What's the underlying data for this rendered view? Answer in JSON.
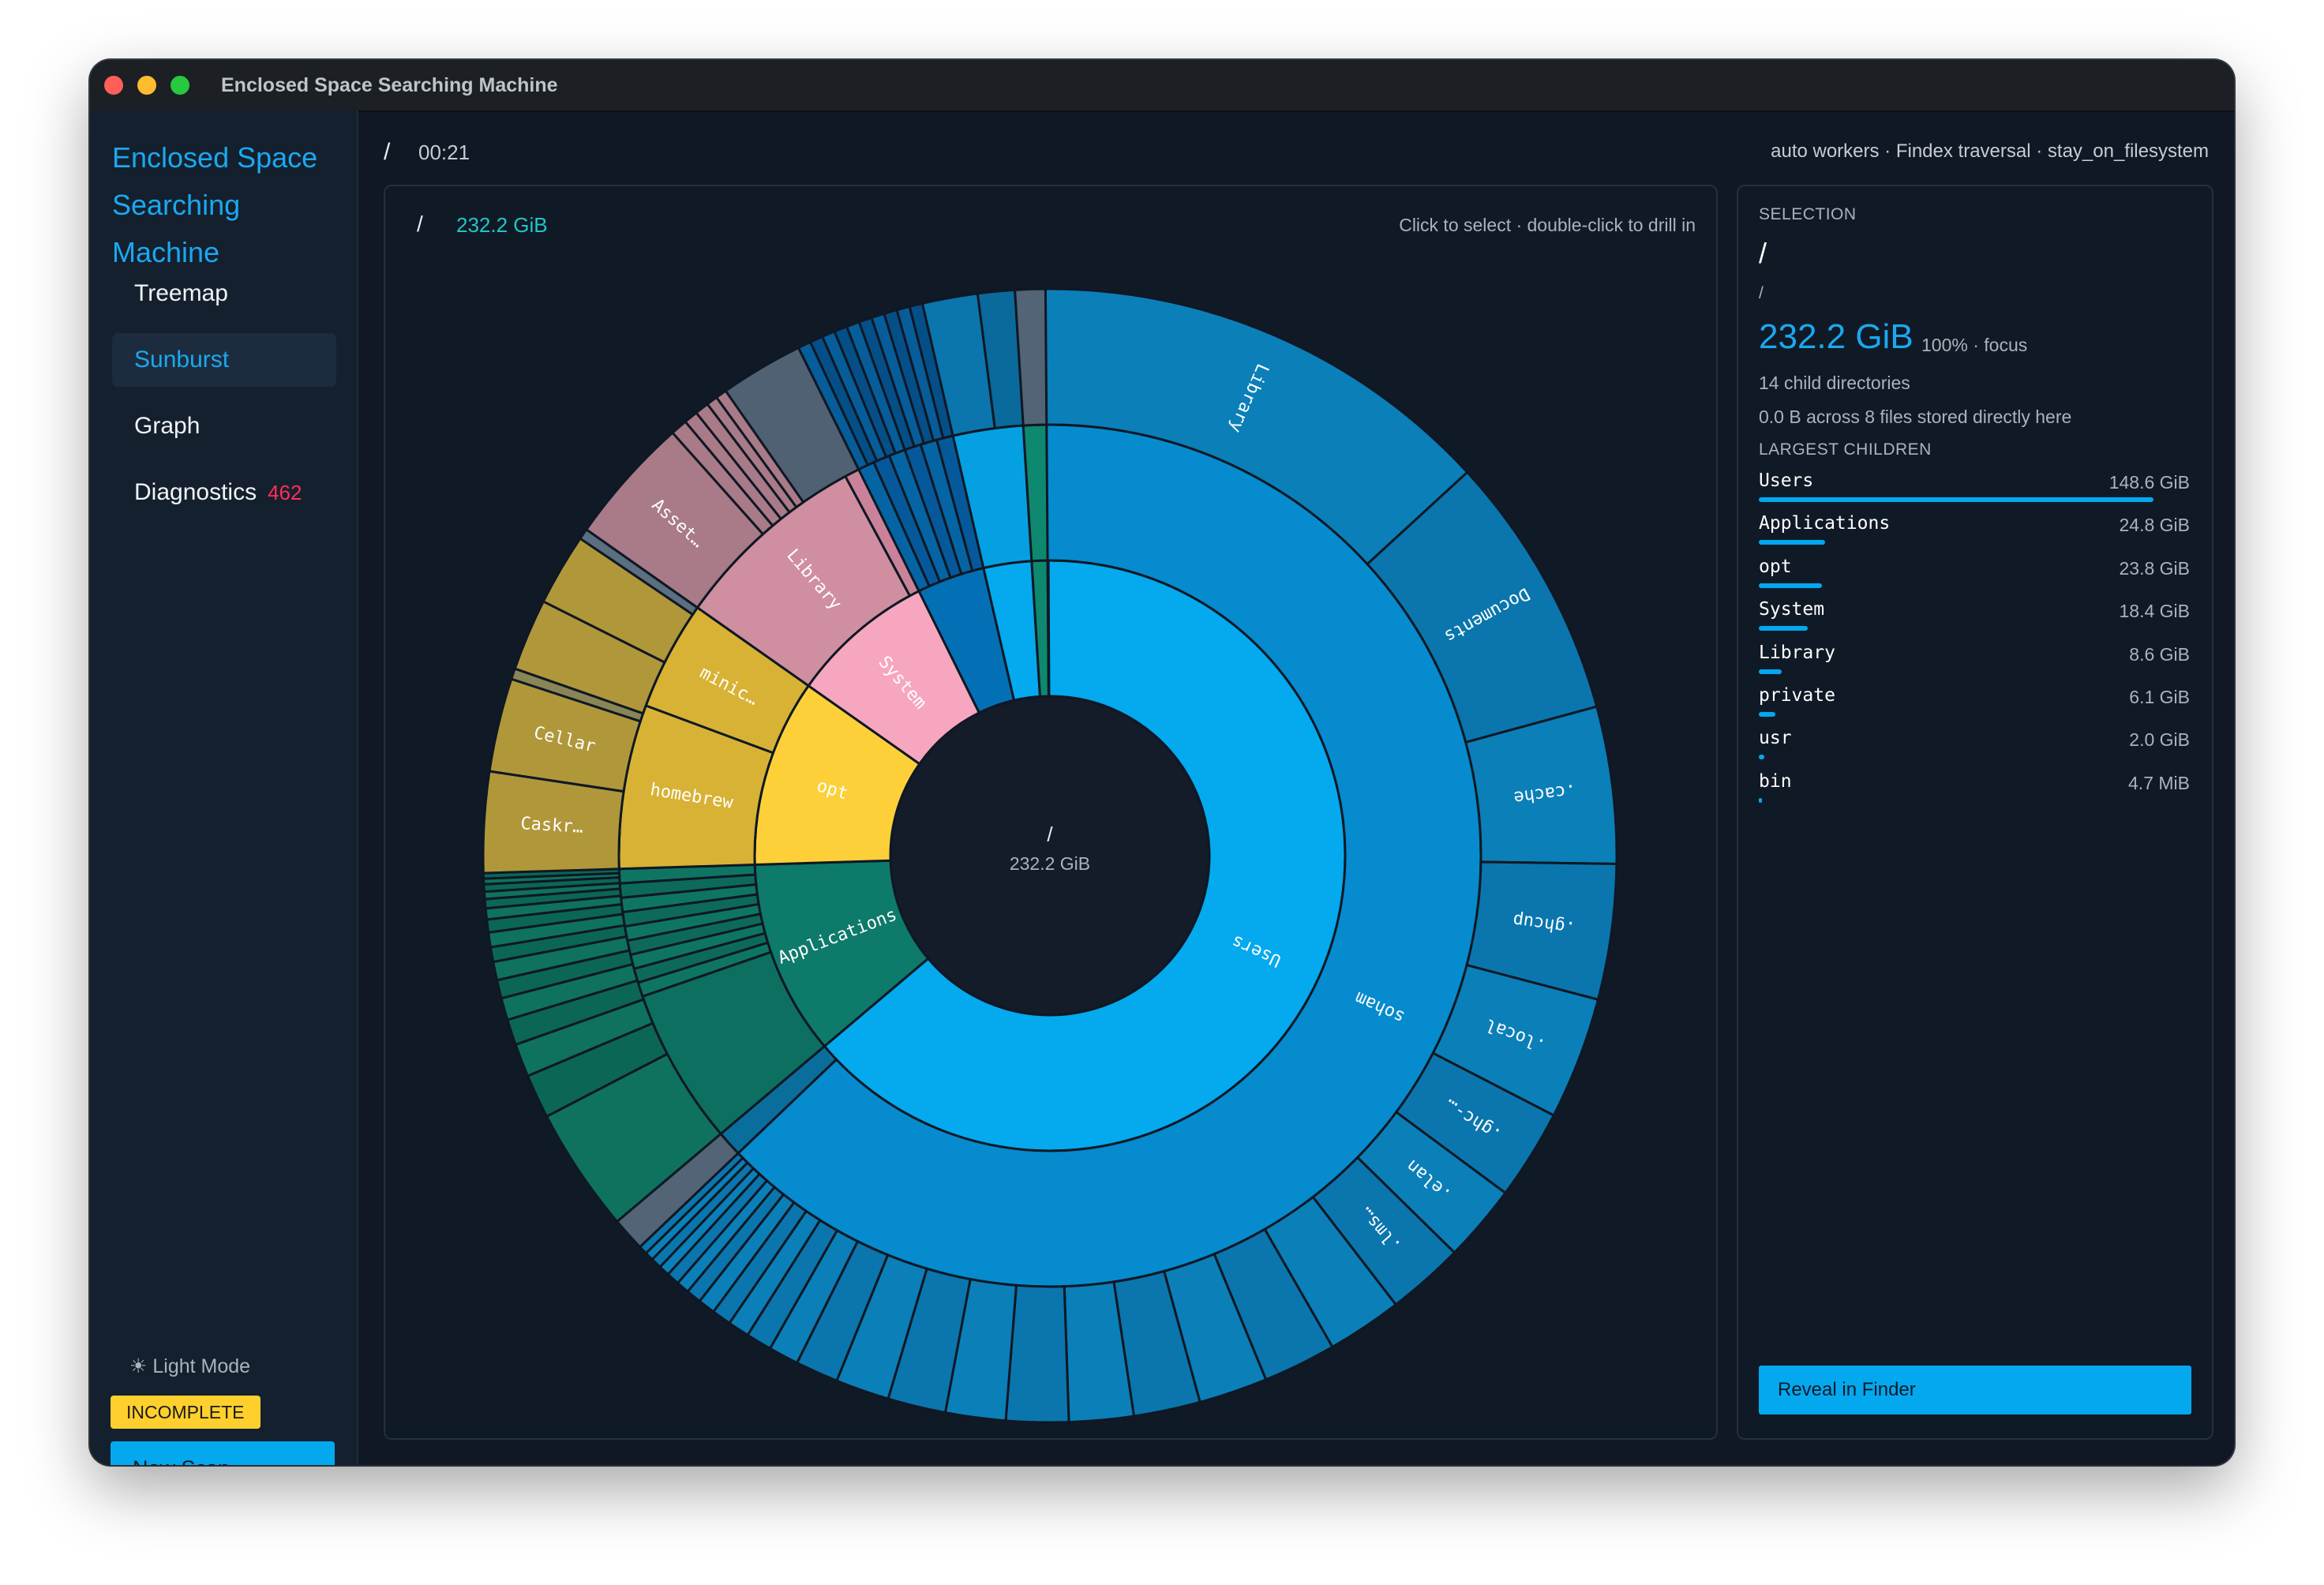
{
  "window": {
    "title": "Enclosed Space Searching Machine"
  },
  "sidebar": {
    "app_title_lines": [
      "Enclosed Space",
      "Searching",
      "Machine"
    ],
    "nav": [
      {
        "label": "Treemap",
        "active": false
      },
      {
        "label": "Sunburst",
        "active": true
      },
      {
        "label": "Graph",
        "active": false
      },
      {
        "label": "Diagnostics",
        "badge": "462",
        "active": false
      }
    ],
    "light_mode": "☀ Light Mode",
    "status_badge": "INCOMPLETE",
    "new_scan": "New Scan"
  },
  "topbar": {
    "path": "/",
    "elapsed": "00:21",
    "info": "auto workers · Findex traversal · stay_on_filesystem"
  },
  "chart_panel": {
    "path": "/",
    "size": "232.2 GiB",
    "hint": "Click to select · double-click to drill in",
    "center_path": "/",
    "center_size": "232.2 GiB"
  },
  "chart_data": {
    "type": "sunburst",
    "total_gib": 232.2,
    "root": "/",
    "ring1": [
      {
        "name": "Users",
        "gib": 148.6,
        "label": "Users",
        "color": "#04a9ee"
      },
      {
        "name": "Applications",
        "gib": 24.8,
        "label": "Applications",
        "color": "#0d7a6a"
      },
      {
        "name": "opt",
        "gib": 23.8,
        "label": "opt",
        "color": "#fdd03a"
      },
      {
        "name": "System",
        "gib": 18.4,
        "label": "System",
        "color": "#f7a6c0"
      },
      {
        "name": "Library",
        "gib": 8.6,
        "label": "",
        "color": "#0370b5"
      },
      {
        "name": "private",
        "gib": 6.1,
        "label": "",
        "color": "#04a9ee"
      },
      {
        "name": "usr",
        "gib": 2.0,
        "label": "",
        "color": "#0f8870"
      },
      {
        "name": "bin",
        "gib": 0.005,
        "label": "",
        "color": "#0f8870"
      }
    ],
    "ring2": [
      {
        "parent": "Users",
        "label": "soham",
        "color": "#058bce"
      },
      {
        "parent": "Applications",
        "label": "",
        "color": "#0c6f60"
      },
      {
        "parent": "opt",
        "label": "homebrew",
        "color": "#d8b235"
      },
      {
        "parent": "opt",
        "label": "minic…",
        "color": "#d8b235"
      },
      {
        "parent": "System",
        "label": "Library",
        "color": "#cf8fa0"
      },
      {
        "parent": "Library",
        "label": "",
        "color": "#0565a4"
      },
      {
        "parent": "private",
        "label": "",
        "color": "#04a9ee"
      },
      {
        "parent": "usr",
        "label": "",
        "color": "#0f8870"
      }
    ],
    "ring3_labels": [
      "Library",
      "Documents",
      ".cache",
      ".ghcup",
      ".local",
      ".ghc-…",
      ".elan",
      ".lms…",
      "Asset…",
      "Cellar",
      "Caskr…"
    ],
    "colors": {
      "users": "#04a9ee",
      "applications": "#0d7a6a",
      "opt": "#fdd03a",
      "system": "#f7a6c0",
      "misc": "#526475",
      "center": "#131c28"
    }
  },
  "selection": {
    "caption": "SELECTION",
    "name": "/",
    "path": "/",
    "size": "232.2 GiB",
    "pct_focus": "100% · focus",
    "child_dirs": "14 child directories",
    "files_here": "0.0 B across 8 files stored directly here",
    "largest_caption": "LARGEST CHILDREN",
    "children": [
      {
        "name": "Users",
        "size": "148.6 GiB",
        "frac": 1.0
      },
      {
        "name": "Applications",
        "size": "24.8 GiB",
        "frac": 0.167
      },
      {
        "name": "opt",
        "size": "23.8 GiB",
        "frac": 0.16
      },
      {
        "name": "System",
        "size": "18.4 GiB",
        "frac": 0.124
      },
      {
        "name": "Library",
        "size": "8.6 GiB",
        "frac": 0.058
      },
      {
        "name": "private",
        "size": "6.1 GiB",
        "frac": 0.041
      },
      {
        "name": "usr",
        "size": "2.0 GiB",
        "frac": 0.013
      },
      {
        "name": "bin",
        "size": "4.7 MiB",
        "frac": 0.002
      }
    ],
    "reveal": "Reveal in Finder"
  }
}
